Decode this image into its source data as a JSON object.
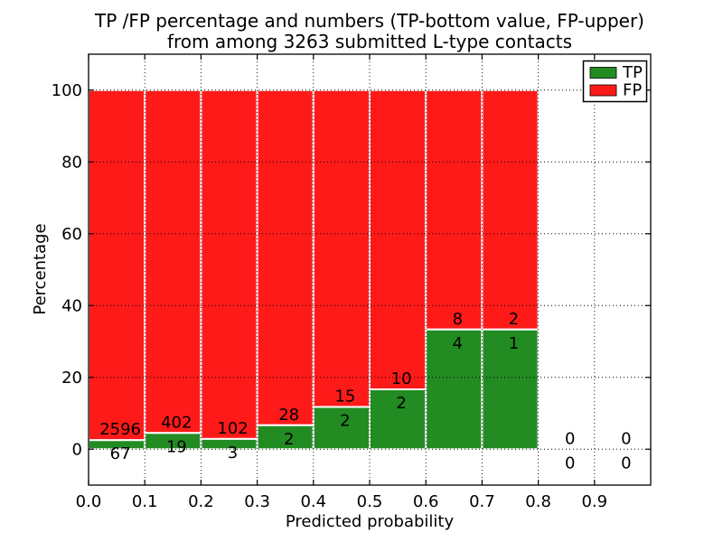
{
  "chart_data": {
    "type": "bar",
    "stacked": true,
    "units": "percent_of_bin_total",
    "title_lines": [
      "TP /FP percentage and numbers (TP-bottom value, FP-upper)",
      "from among 3263 submitted L-type contacts"
    ],
    "xlabel": "Predicted probability",
    "ylabel": "Percentage",
    "xlim": [
      0.0,
      1.0
    ],
    "ylim": [
      -10,
      110
    ],
    "x_ticks": [
      "0.0",
      "0.1",
      "0.2",
      "0.3",
      "0.4",
      "0.5",
      "0.6",
      "0.7",
      "0.8",
      "0.9"
    ],
    "y_ticks": [
      0,
      20,
      40,
      60,
      80,
      100
    ],
    "grid_style": "dotted",
    "total_submitted": 3263,
    "bins": [
      {
        "range": "0.0-0.1",
        "tp": 67,
        "fp": 2596
      },
      {
        "range": "0.1-0.2",
        "tp": 19,
        "fp": 402
      },
      {
        "range": "0.2-0.3",
        "tp": 3,
        "fp": 102
      },
      {
        "range": "0.3-0.4",
        "tp": 2,
        "fp": 28
      },
      {
        "range": "0.4-0.5",
        "tp": 2,
        "fp": 15
      },
      {
        "range": "0.5-0.6",
        "tp": 2,
        "fp": 10
      },
      {
        "range": "0.6-0.7",
        "tp": 4,
        "fp": 8
      },
      {
        "range": "0.7-0.8",
        "tp": 1,
        "fp": 2
      },
      {
        "range": "0.8-0.9",
        "tp": 0,
        "fp": 0
      },
      {
        "range": "0.9-1.0",
        "tp": 0,
        "fp": 0
      }
    ],
    "colors": {
      "tp": "#228b22",
      "fp": "#ff1a1a",
      "bar_edge": "#ffffff",
      "grid": "#000000"
    },
    "legend": {
      "position": "upper right",
      "entries": [
        {
          "label": "TP",
          "color": "#228b22"
        },
        {
          "label": "FP",
          "color": "#ff1a1a"
        }
      ]
    }
  }
}
